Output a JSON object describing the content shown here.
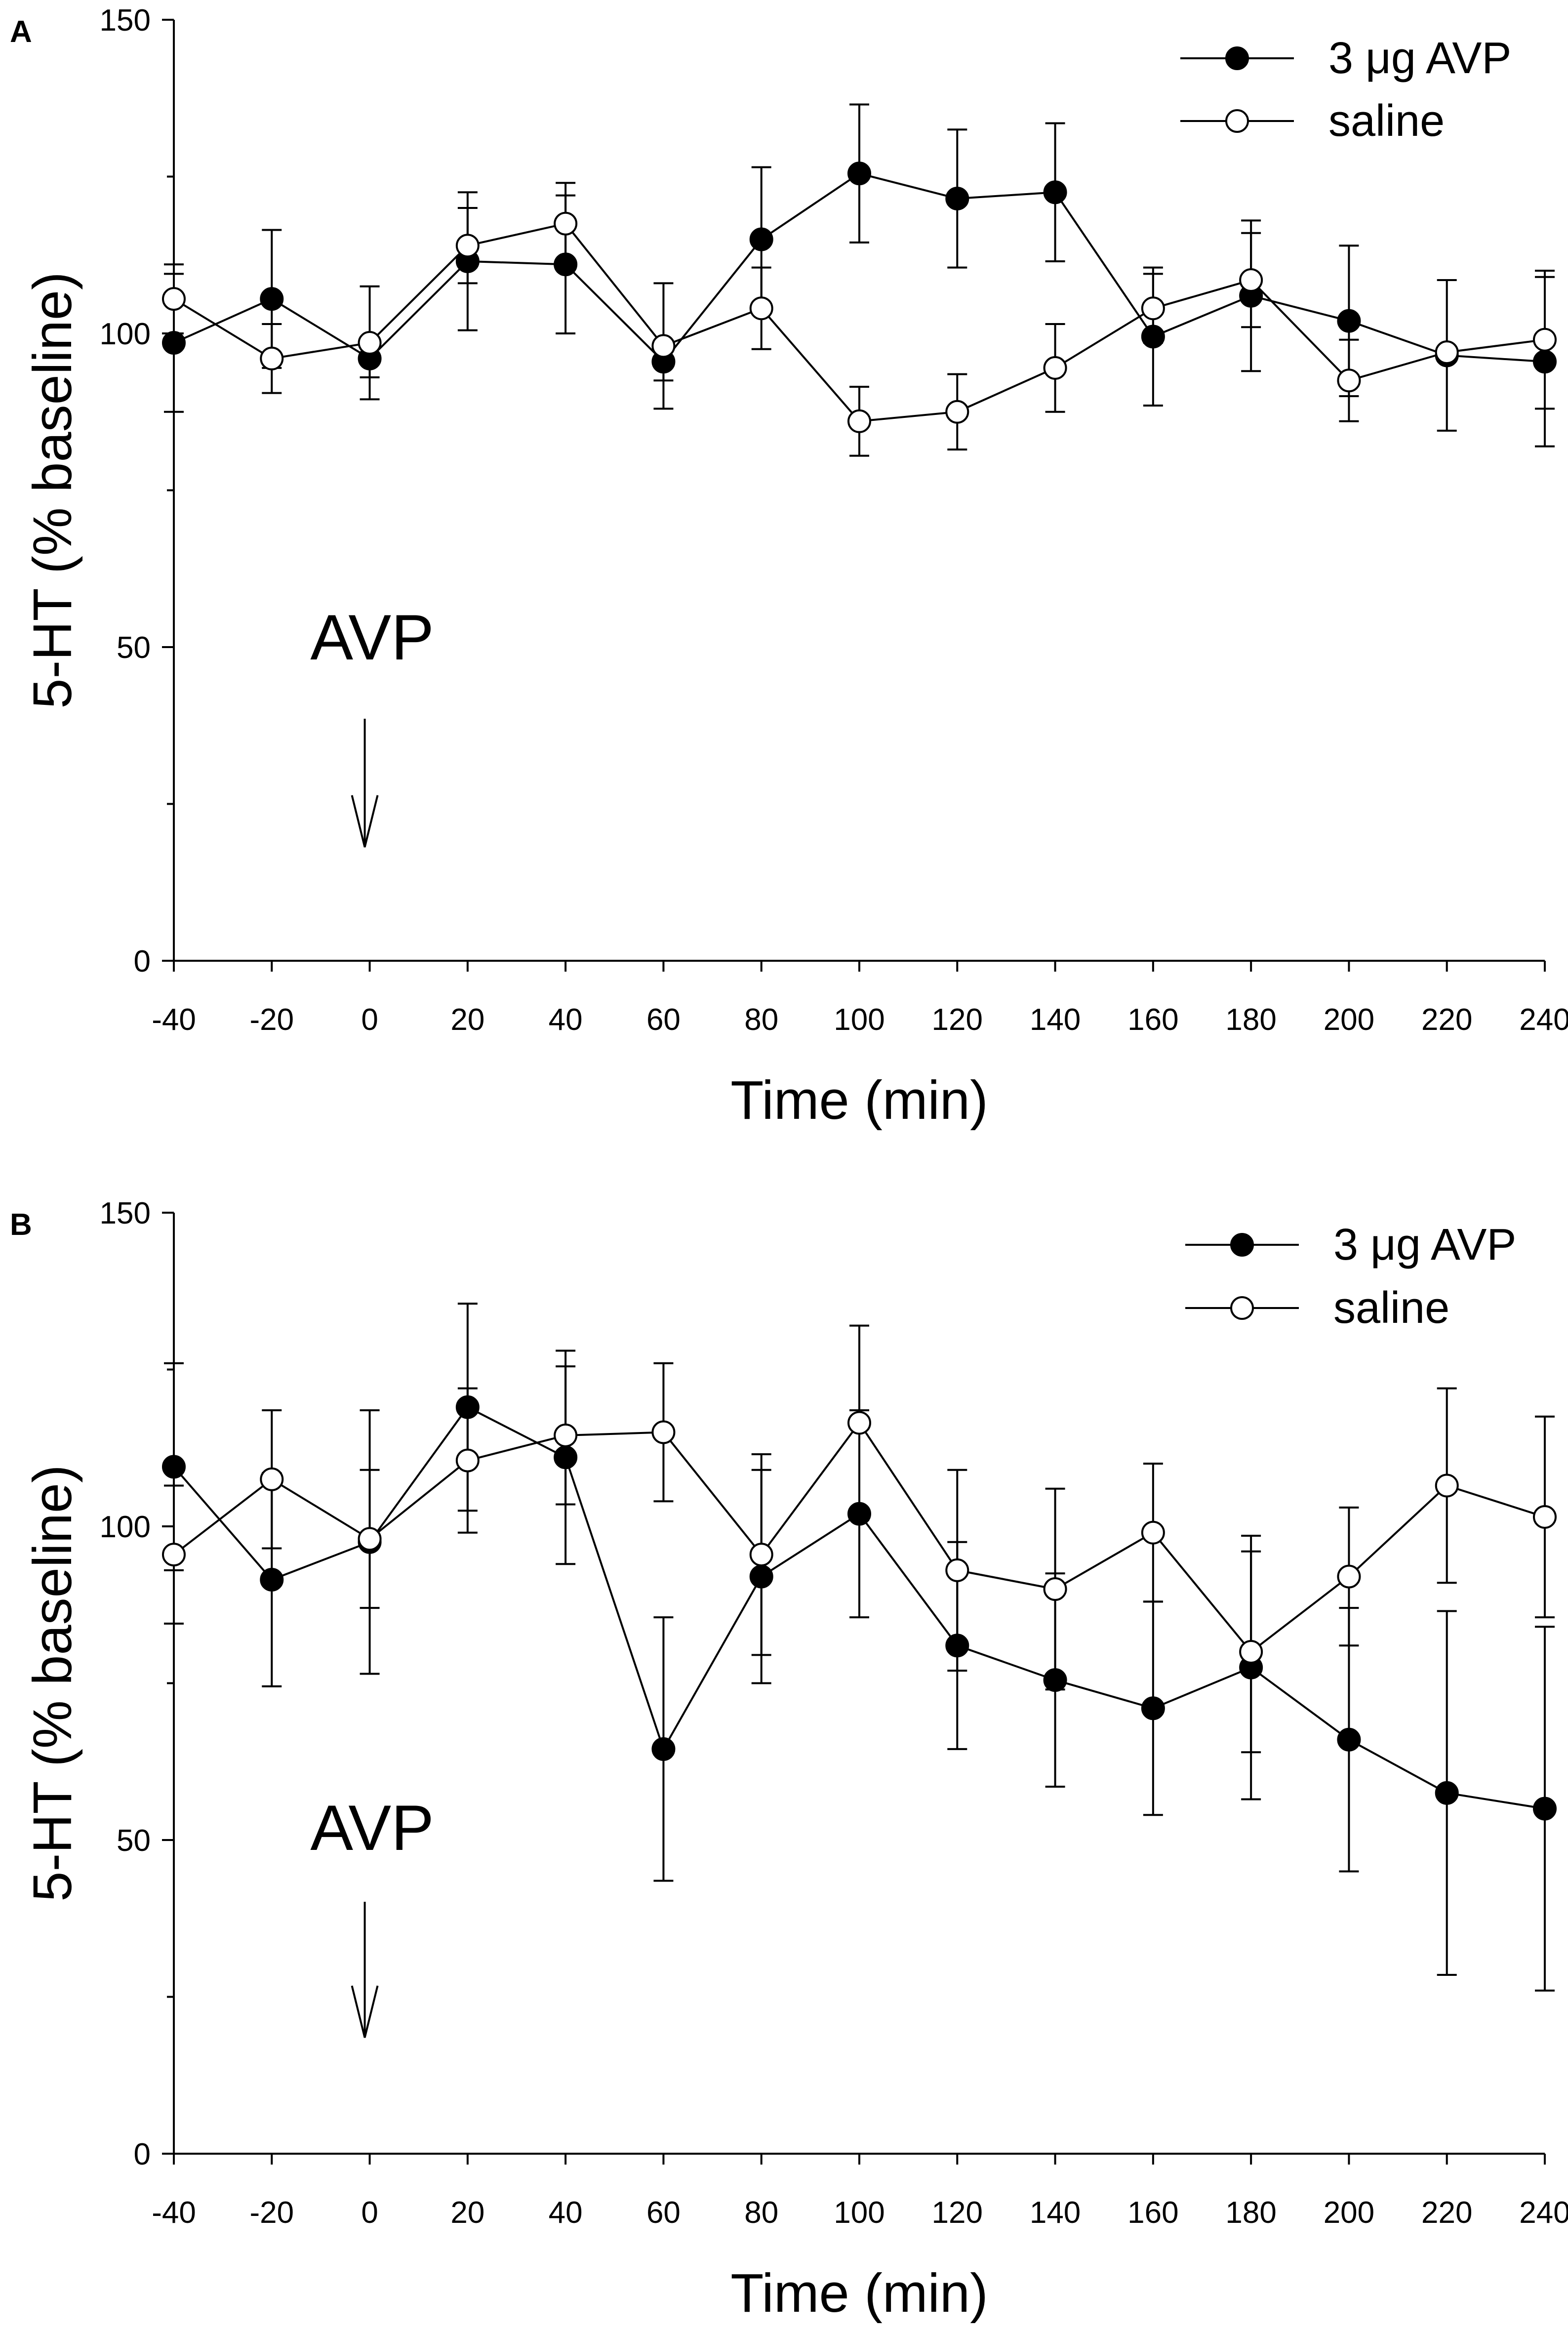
{
  "chart_data": [
    {
      "panel": "A",
      "type": "line",
      "xlabel": "Time (min)",
      "ylabel": "5-HT (% baseline)",
      "ylim": [
        0,
        150
      ],
      "xlim": [
        -40,
        240
      ],
      "x_ticks": [
        -40,
        -20,
        0,
        20,
        40,
        60,
        80,
        100,
        120,
        140,
        160,
        180,
        200,
        220,
        240
      ],
      "y_ticks": [
        0,
        50,
        100,
        150
      ],
      "x": [
        -40,
        -20,
        0,
        20,
        40,
        60,
        80,
        100,
        120,
        140,
        160,
        180,
        200,
        220,
        240
      ],
      "series": [
        {
          "name": "3 μg AVP",
          "marker": "filled",
          "values": [
            98.5,
            105.5,
            96,
            111.5,
            111,
            95.5,
            115,
            125.5,
            121.5,
            122.5,
            99.5,
            106,
            102,
            96.5,
            95.5
          ],
          "errors": [
            11,
            11,
            3,
            11,
            11,
            3,
            11.5,
            11,
            11,
            11,
            11,
            12,
            12,
            12,
            13.5
          ]
        },
        {
          "name": "saline",
          "marker": "open",
          "values": [
            105.5,
            96,
            98.5,
            114,
            117.5,
            98,
            104,
            86,
            87.5,
            94.5,
            104,
            108.5,
            92.5,
            97,
            99
          ],
          "errors": [
            5.5,
            5.5,
            9,
            6,
            6.5,
            10,
            6.5,
            5.5,
            6,
            7,
            5.5,
            7.5,
            6.5,
            0,
            11
          ]
        }
      ],
      "legend": {
        "position": "top-right",
        "entries": [
          "3 μg AVP",
          "saline"
        ]
      },
      "annotations": [
        {
          "text": "AVP",
          "x": 0
        }
      ]
    },
    {
      "panel": "B",
      "type": "line",
      "xlabel": "Time (min)",
      "ylabel": "5-HT (% baseline)",
      "ylim": [
        0,
        150
      ],
      "xlim": [
        -40,
        240
      ],
      "x_ticks": [
        -40,
        -20,
        0,
        20,
        40,
        60,
        80,
        100,
        120,
        140,
        160,
        180,
        200,
        220,
        240
      ],
      "y_ticks": [
        0,
        50,
        100,
        150
      ],
      "x": [
        -40,
        -20,
        0,
        20,
        40,
        60,
        80,
        100,
        120,
        140,
        160,
        180,
        200,
        220,
        240
      ],
      "series": [
        {
          "name": "3 μg AVP",
          "marker": "filled",
          "values": [
            109.5,
            91.5,
            97.5,
            119,
            111,
            64.5,
            92,
            102,
            81,
            75.5,
            71,
            77.5,
            66,
            57.5,
            55
          ],
          "errors": [
            16.5,
            17,
            21,
            16.5,
            17,
            21,
            17,
            16.5,
            16.5,
            17,
            17,
            21,
            21,
            29,
            29
          ]
        },
        {
          "name": "saline",
          "marker": "open",
          "values": [
            95.5,
            107.5,
            98,
            110.5,
            114.5,
            115,
            95.5,
            116.5,
            93,
            90,
            99,
            80,
            92,
            106.5,
            101.5
          ],
          "errors": [
            11,
            11,
            11,
            11.5,
            11,
            11,
            16,
            15.5,
            16,
            16,
            11,
            16,
            11,
            15.5,
            16
          ]
        }
      ],
      "legend": {
        "position": "top-right",
        "entries": [
          "3 μg AVP",
          "saline"
        ]
      },
      "annotations": [
        {
          "text": "AVP",
          "x": 0
        }
      ]
    }
  ]
}
